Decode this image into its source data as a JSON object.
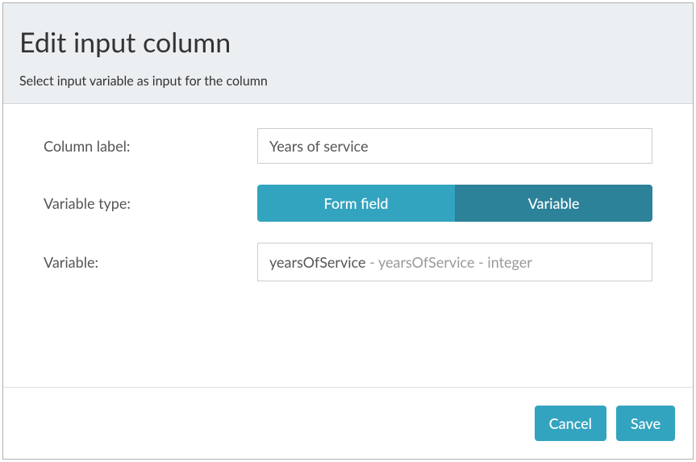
{
  "colors": {
    "primary": "#33a4bf",
    "primary_dark": "#2c8298",
    "header_bg": "#ebeff2",
    "border": "#cccccc",
    "text_dark": "#333333",
    "text_mid": "#555555",
    "text_light": "#999999"
  },
  "header": {
    "title": "Edit input column",
    "subtitle": "Select input variable as input for the column"
  },
  "form": {
    "column_label": {
      "label": "Column label:",
      "value": "Years of service"
    },
    "variable_type": {
      "label": "Variable type:",
      "options": [
        {
          "label": "Form field",
          "selected": false
        },
        {
          "label": "Variable",
          "selected": true
        }
      ]
    },
    "variable": {
      "label": "Variable:",
      "value_primary": "yearsOfService",
      "value_secondary": " - yearsOfService - integer"
    }
  },
  "footer": {
    "cancel": "Cancel",
    "save": "Save"
  }
}
